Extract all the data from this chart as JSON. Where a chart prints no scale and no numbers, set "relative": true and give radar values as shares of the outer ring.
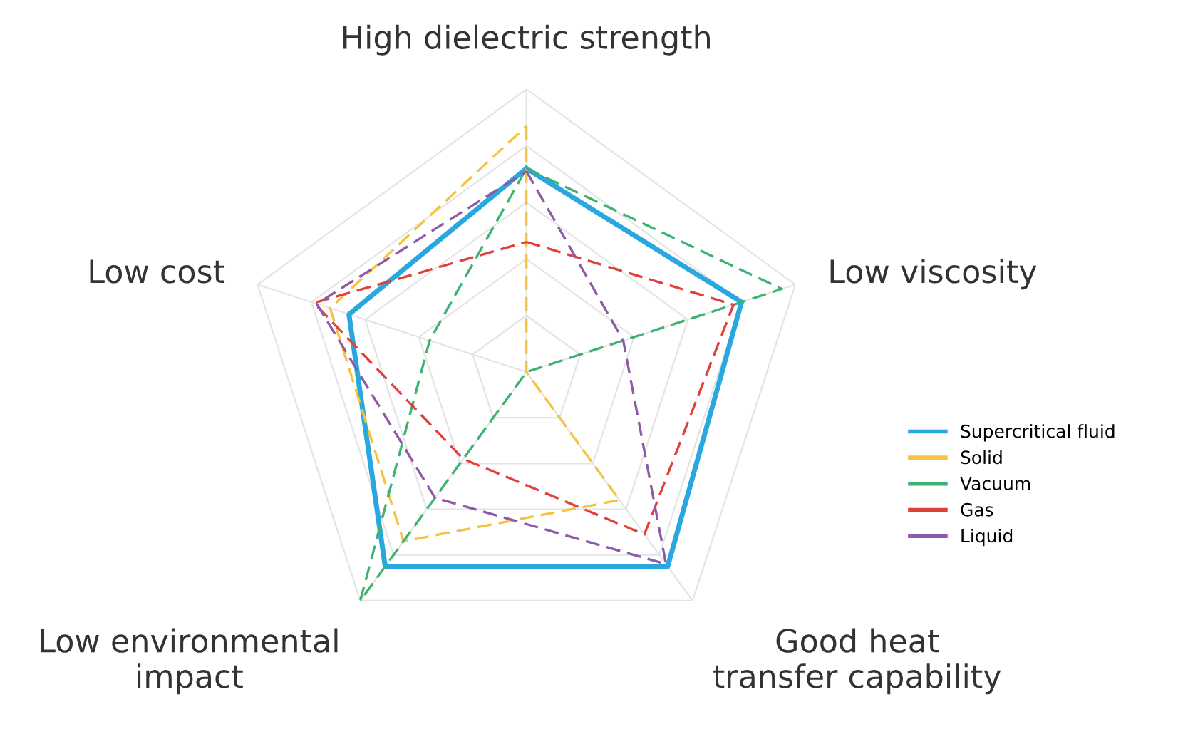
{
  "chart_data": {
    "type": "radar",
    "relative": true,
    "grid": true,
    "legend": "right",
    "categories": [
      "High dielectric strength",
      "Low viscosity",
      "Good heat\ntransfer capability",
      "Low environmental\nimpact",
      "Low cost"
    ],
    "series": [
      {
        "name": "Supercritical fluid",
        "color": "#29a8e0",
        "line_style": "solid",
        "values": [
          0.72,
          0.8,
          0.85,
          0.85,
          0.66
        ]
      },
      {
        "name": "Solid",
        "color": "#f5c242",
        "line_style": "dashed",
        "values": [
          0.87,
          0,
          0.56,
          0.74,
          0.73
        ]
      },
      {
        "name": "Vacuum",
        "color": "#3cb371",
        "line_style": "dashed",
        "values": [
          0.72,
          0.95,
          0,
          1.0,
          0.36
        ]
      },
      {
        "name": "Gas",
        "color": "#e0403a",
        "line_style": "dashed",
        "values": [
          0.46,
          0.77,
          0.71,
          0.38,
          0.79
        ]
      },
      {
        "name": "Liquid",
        "color": "#8e5aa8",
        "line_style": "dashed",
        "values": [
          0.71,
          0.36,
          0.84,
          0.55,
          0.78
        ]
      }
    ]
  }
}
